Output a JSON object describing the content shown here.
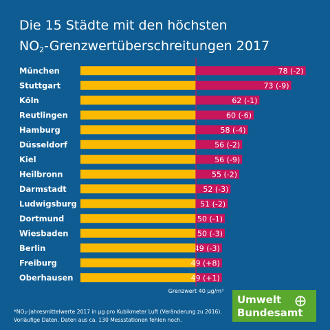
{
  "title": {
    "line1": "Die 15 Städte mit den höchsten",
    "line2_pre": "NO",
    "line2_sub": "2",
    "line2_post": "-Grenzwertüberschreitungen 2017"
  },
  "chart_data": {
    "type": "bar",
    "orientation": "horizontal",
    "threshold": 40,
    "threshold_label": "Grenzwert 40 µg/m³",
    "xlim": [
      0,
      80
    ],
    "categories": [
      "München",
      "Stuttgart",
      "Köln",
      "Reutlingen",
      "Hamburg",
      "Düsseldorf",
      "Kiel",
      "Heilbronn",
      "Darmstadt",
      "Ludwigsburg",
      "Dortmund",
      "Wiesbaden",
      "Berlin",
      "Freiburg",
      "Oberhausen"
    ],
    "values": [
      78,
      73,
      62,
      60,
      58,
      56,
      56,
      55,
      52,
      51,
      50,
      50,
      49,
      49,
      49
    ],
    "labels": [
      "78 (-2)",
      "73 (-9)",
      "62 (-1)",
      "60 (-6)",
      "58 (-4)",
      "56 (-2)",
      "56 (-9)",
      "55 (-2)",
      "52 (-3)",
      "51 (-2)",
      "50 (-1)",
      "50 (-3)",
      "49 (-3)",
      "49 (+8)",
      "49 (+1)"
    ],
    "colors": {
      "below_limit": "#fbb900",
      "above_limit": "#c8155c",
      "threshold_line": "#c8155c"
    }
  },
  "footnote": {
    "line1_pre": "*NO",
    "line1_sub": "2",
    "line1_post": "-Jahresmittelwerte 2017 in µg pro Kubikmeter Luft (Veränderung zu 2016).",
    "line2": "Vorläufige Daten. Daten aus ca. 130 Messstationen fehlen noch."
  },
  "logo": {
    "line1": "Umwelt",
    "line2": "Bundesamt",
    "icon": "uba-logo-icon"
  },
  "colors": {
    "background": "#0f5c92",
    "logo_green": "#5aa82e"
  }
}
